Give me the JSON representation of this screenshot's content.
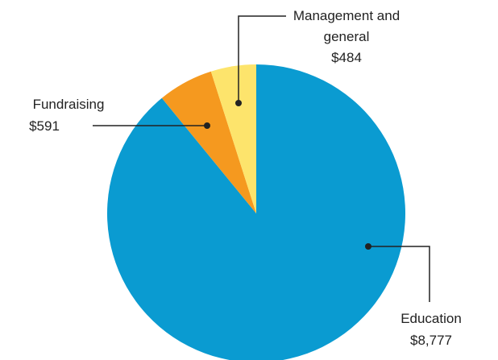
{
  "chart_data": {
    "type": "pie",
    "categories": [
      "Education",
      "Fundraising",
      "Management and general"
    ],
    "values": [
      8777,
      591,
      484
    ],
    "value_labels": [
      "$8,777",
      "$591",
      "$484"
    ],
    "colors": [
      "#0a9bd1",
      "#f5991f",
      "#fde46c"
    ]
  }
}
